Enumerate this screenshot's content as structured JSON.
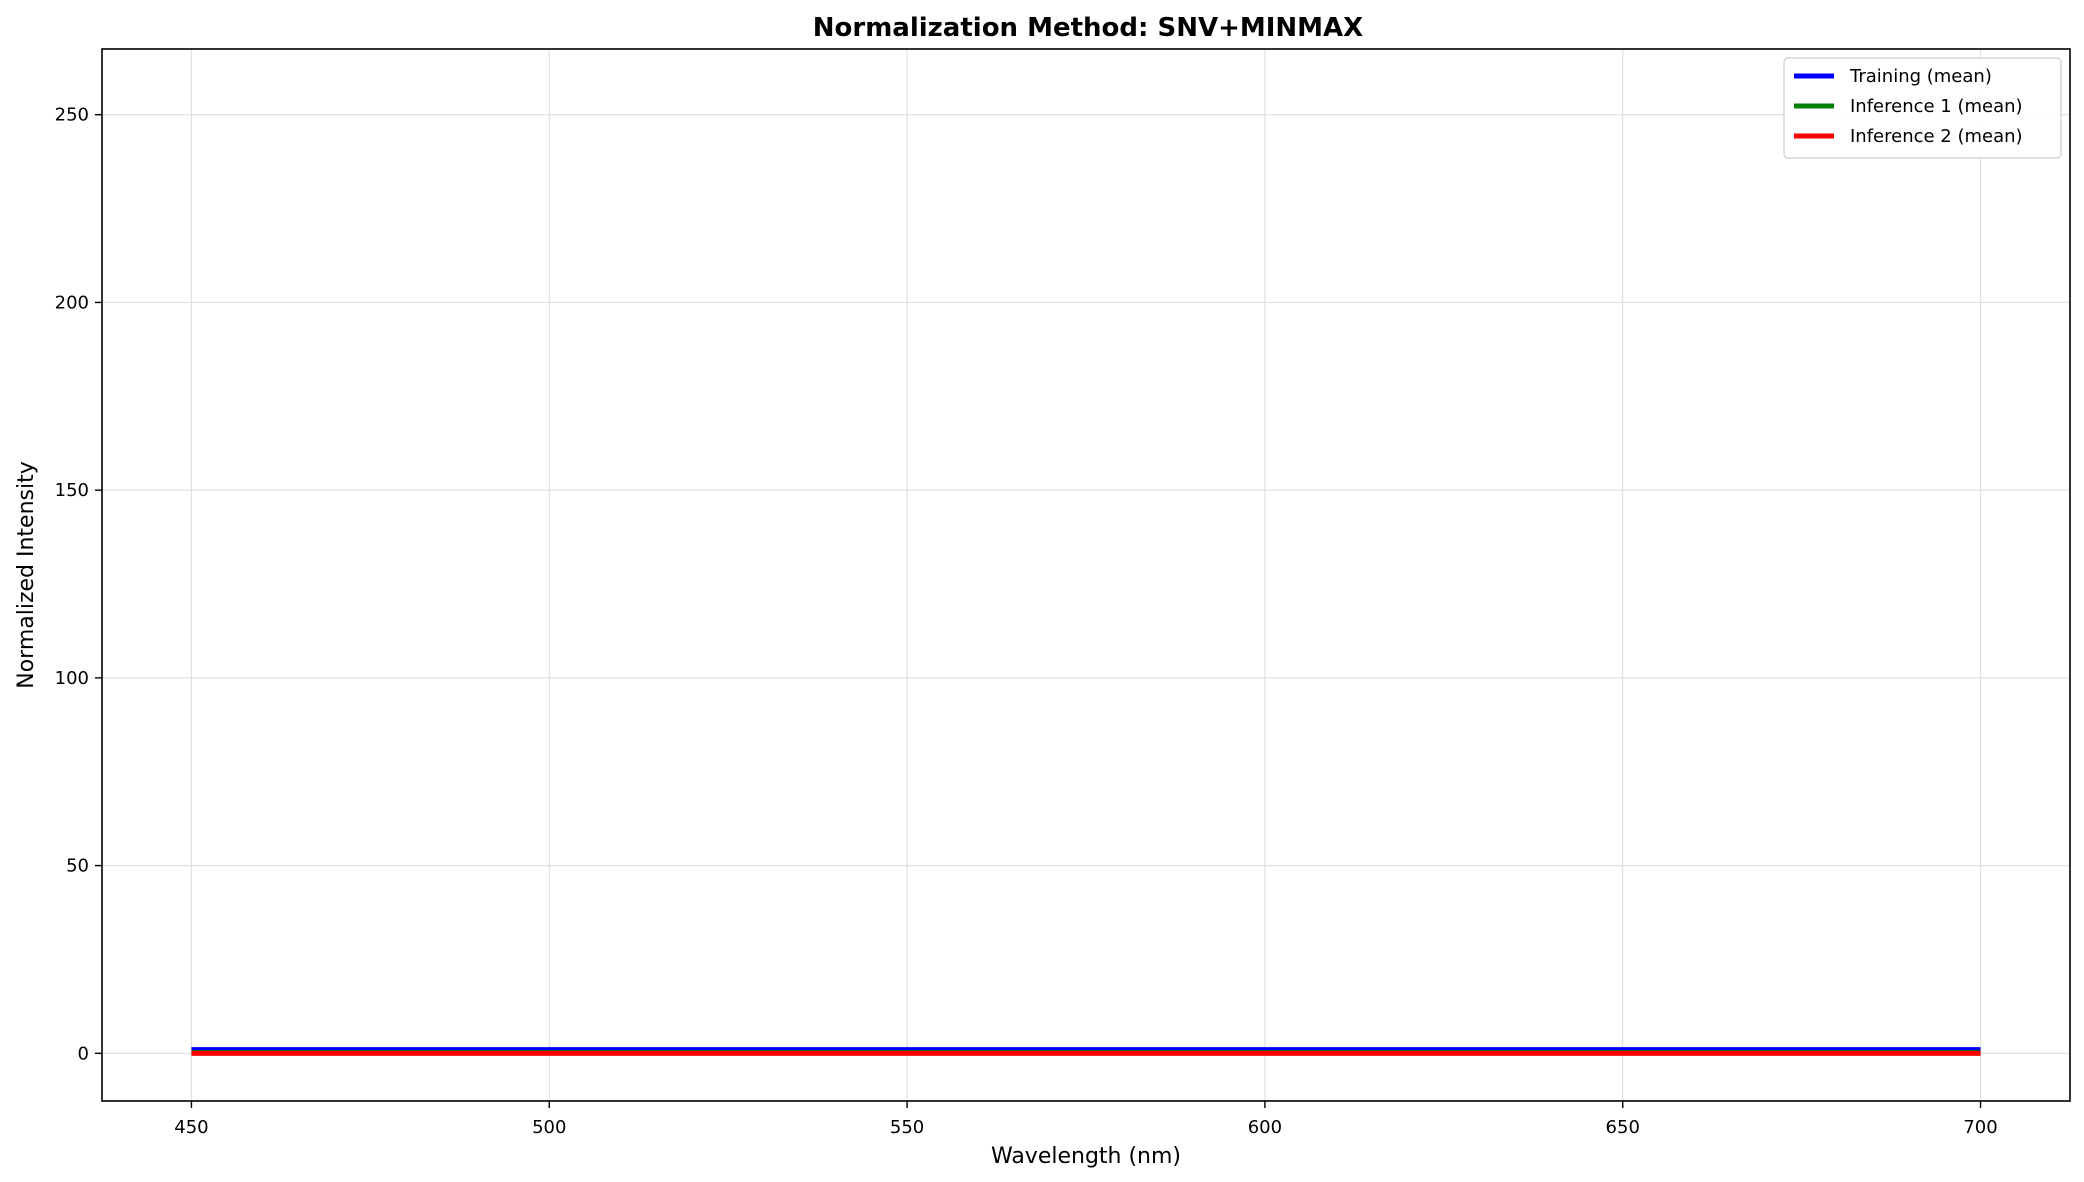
{
  "chart_data": {
    "type": "line",
    "title": "Normalization Method: SNV+MINMAX",
    "xlabel": "Wavelength (nm)",
    "ylabel": "Normalized Intensity",
    "xlim": [
      437.5,
      712.5
    ],
    "ylim": [
      -12.7,
      267.5
    ],
    "xticks": [
      450,
      500,
      550,
      600,
      650,
      700
    ],
    "yticks": [
      0,
      50,
      100,
      150,
      200,
      250
    ],
    "grid": true,
    "legend_position": "top-right",
    "x": [
      450,
      500,
      550,
      600,
      650,
      700
    ],
    "series": [
      {
        "name": "Training (mean)",
        "color": "#0000ff",
        "values": [
          1.0,
          1.0,
          1.0,
          1.0,
          1.0,
          1.0
        ]
      },
      {
        "name": "Inference 1 (mean)",
        "color": "#008000",
        "values": [
          0.2,
          0.2,
          0.2,
          0.2,
          0.2,
          0.2
        ]
      },
      {
        "name": "Inference 2 (mean)",
        "color": "#ff0000",
        "values": [
          0.0,
          0.0,
          0.0,
          0.0,
          0.0,
          0.0
        ]
      }
    ]
  }
}
